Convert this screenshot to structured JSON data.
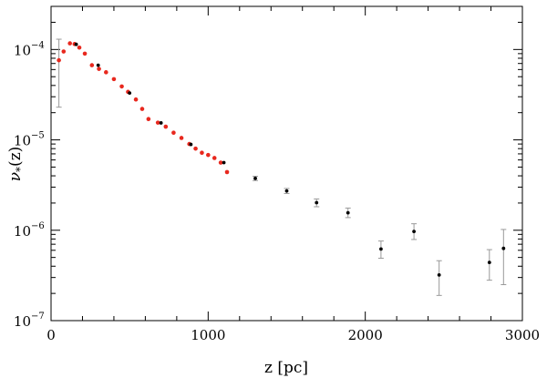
{
  "chart_data": {
    "type": "scatter",
    "xlabel": "z [pc]",
    "ylabel_symbol": "ν",
    "ylabel_subscript": "*",
    "ylabel_arg": "(z)",
    "xlim": [
      0,
      3000
    ],
    "ylim": [
      1e-07,
      0.0003
    ],
    "yscale": "log",
    "grid": false,
    "legend": "none",
    "x_ticks": [
      {
        "value": 0,
        "label": "0"
      },
      {
        "value": 1000,
        "label": "1000"
      },
      {
        "value": 2000,
        "label": "2000"
      },
      {
        "value": 3000,
        "label": "3000"
      }
    ],
    "y_ticks": [
      {
        "value": 1e-07,
        "base": "10",
        "exp": "−7"
      },
      {
        "value": 1e-06,
        "base": "10",
        "exp": "−6"
      },
      {
        "value": 1e-05,
        "base": "10",
        "exp": "−5"
      },
      {
        "value": 0.0001,
        "base": "10",
        "exp": "−4"
      }
    ],
    "colors": {
      "red_series": "#e8281e",
      "black_series": "#000000",
      "errorbar": "#999999"
    },
    "series": [
      {
        "color": "red",
        "points": [
          {
            "x": 50,
            "y": 7.6e-05,
            "ylo": 2.3e-05,
            "yhi": 0.00013
          },
          {
            "x": 80,
            "y": 9.5e-05
          },
          {
            "x": 120,
            "y": 0.000117
          },
          {
            "x": 150,
            "y": 0.000115
          },
          {
            "x": 180,
            "y": 0.000105
          },
          {
            "x": 215,
            "y": 9e-05
          },
          {
            "x": 260,
            "y": 6.7e-05
          },
          {
            "x": 305,
            "y": 6.1e-05
          },
          {
            "x": 350,
            "y": 5.6e-05
          },
          {
            "x": 400,
            "y": 4.7e-05
          },
          {
            "x": 450,
            "y": 3.9e-05
          },
          {
            "x": 490,
            "y": 3.4e-05
          },
          {
            "x": 540,
            "y": 2.8e-05
          },
          {
            "x": 580,
            "y": 2.2e-05
          },
          {
            "x": 620,
            "y": 1.7e-05
          },
          {
            "x": 680,
            "y": 1.55e-05
          },
          {
            "x": 730,
            "y": 1.4e-05
          },
          {
            "x": 780,
            "y": 1.2e-05
          },
          {
            "x": 830,
            "y": 1.05e-05
          },
          {
            "x": 880,
            "y": 9e-06
          },
          {
            "x": 920,
            "y": 8e-06
          },
          {
            "x": 960,
            "y": 7.2e-06
          },
          {
            "x": 1000,
            "y": 6.8e-06
          },
          {
            "x": 1040,
            "y": 6.3e-06
          },
          {
            "x": 1080,
            "y": 5.6e-06
          },
          {
            "x": 1120,
            "y": 4.4e-06
          }
        ]
      },
      {
        "color": "black",
        "points": [
          {
            "x": 160,
            "y": 0.000114
          },
          {
            "x": 300,
            "y": 6.7e-05
          },
          {
            "x": 500,
            "y": 3.3e-05
          },
          {
            "x": 700,
            "y": 1.54e-05
          },
          {
            "x": 890,
            "y": 8.9e-06
          },
          {
            "x": 1100,
            "y": 5.6e-06
          },
          {
            "x": 1300,
            "y": 3.75e-06,
            "ylo": 3.55e-06,
            "yhi": 3.95e-06
          },
          {
            "x": 1500,
            "y": 2.72e-06,
            "ylo": 2.55e-06,
            "yhi": 2.9e-06
          },
          {
            "x": 1690,
            "y": 2.02e-06,
            "ylo": 1.82e-06,
            "yhi": 2.22e-06
          },
          {
            "x": 1890,
            "y": 1.56e-06,
            "ylo": 1.38e-06,
            "yhi": 1.76e-06
          },
          {
            "x": 2100,
            "y": 6.2e-07,
            "ylo": 4.9e-07,
            "yhi": 7.6e-07
          },
          {
            "x": 2310,
            "y": 9.7e-07,
            "ylo": 7.9e-07,
            "yhi": 1.18e-06
          },
          {
            "x": 2470,
            "y": 3.2e-07,
            "ylo": 1.9e-07,
            "yhi": 4.6e-07
          },
          {
            "x": 2790,
            "y": 4.4e-07,
            "ylo": 2.8e-07,
            "yhi": 6.1e-07
          },
          {
            "x": 2880,
            "y": 6.3e-07,
            "ylo": 2.5e-07,
            "yhi": 1.02e-06
          }
        ]
      }
    ]
  }
}
